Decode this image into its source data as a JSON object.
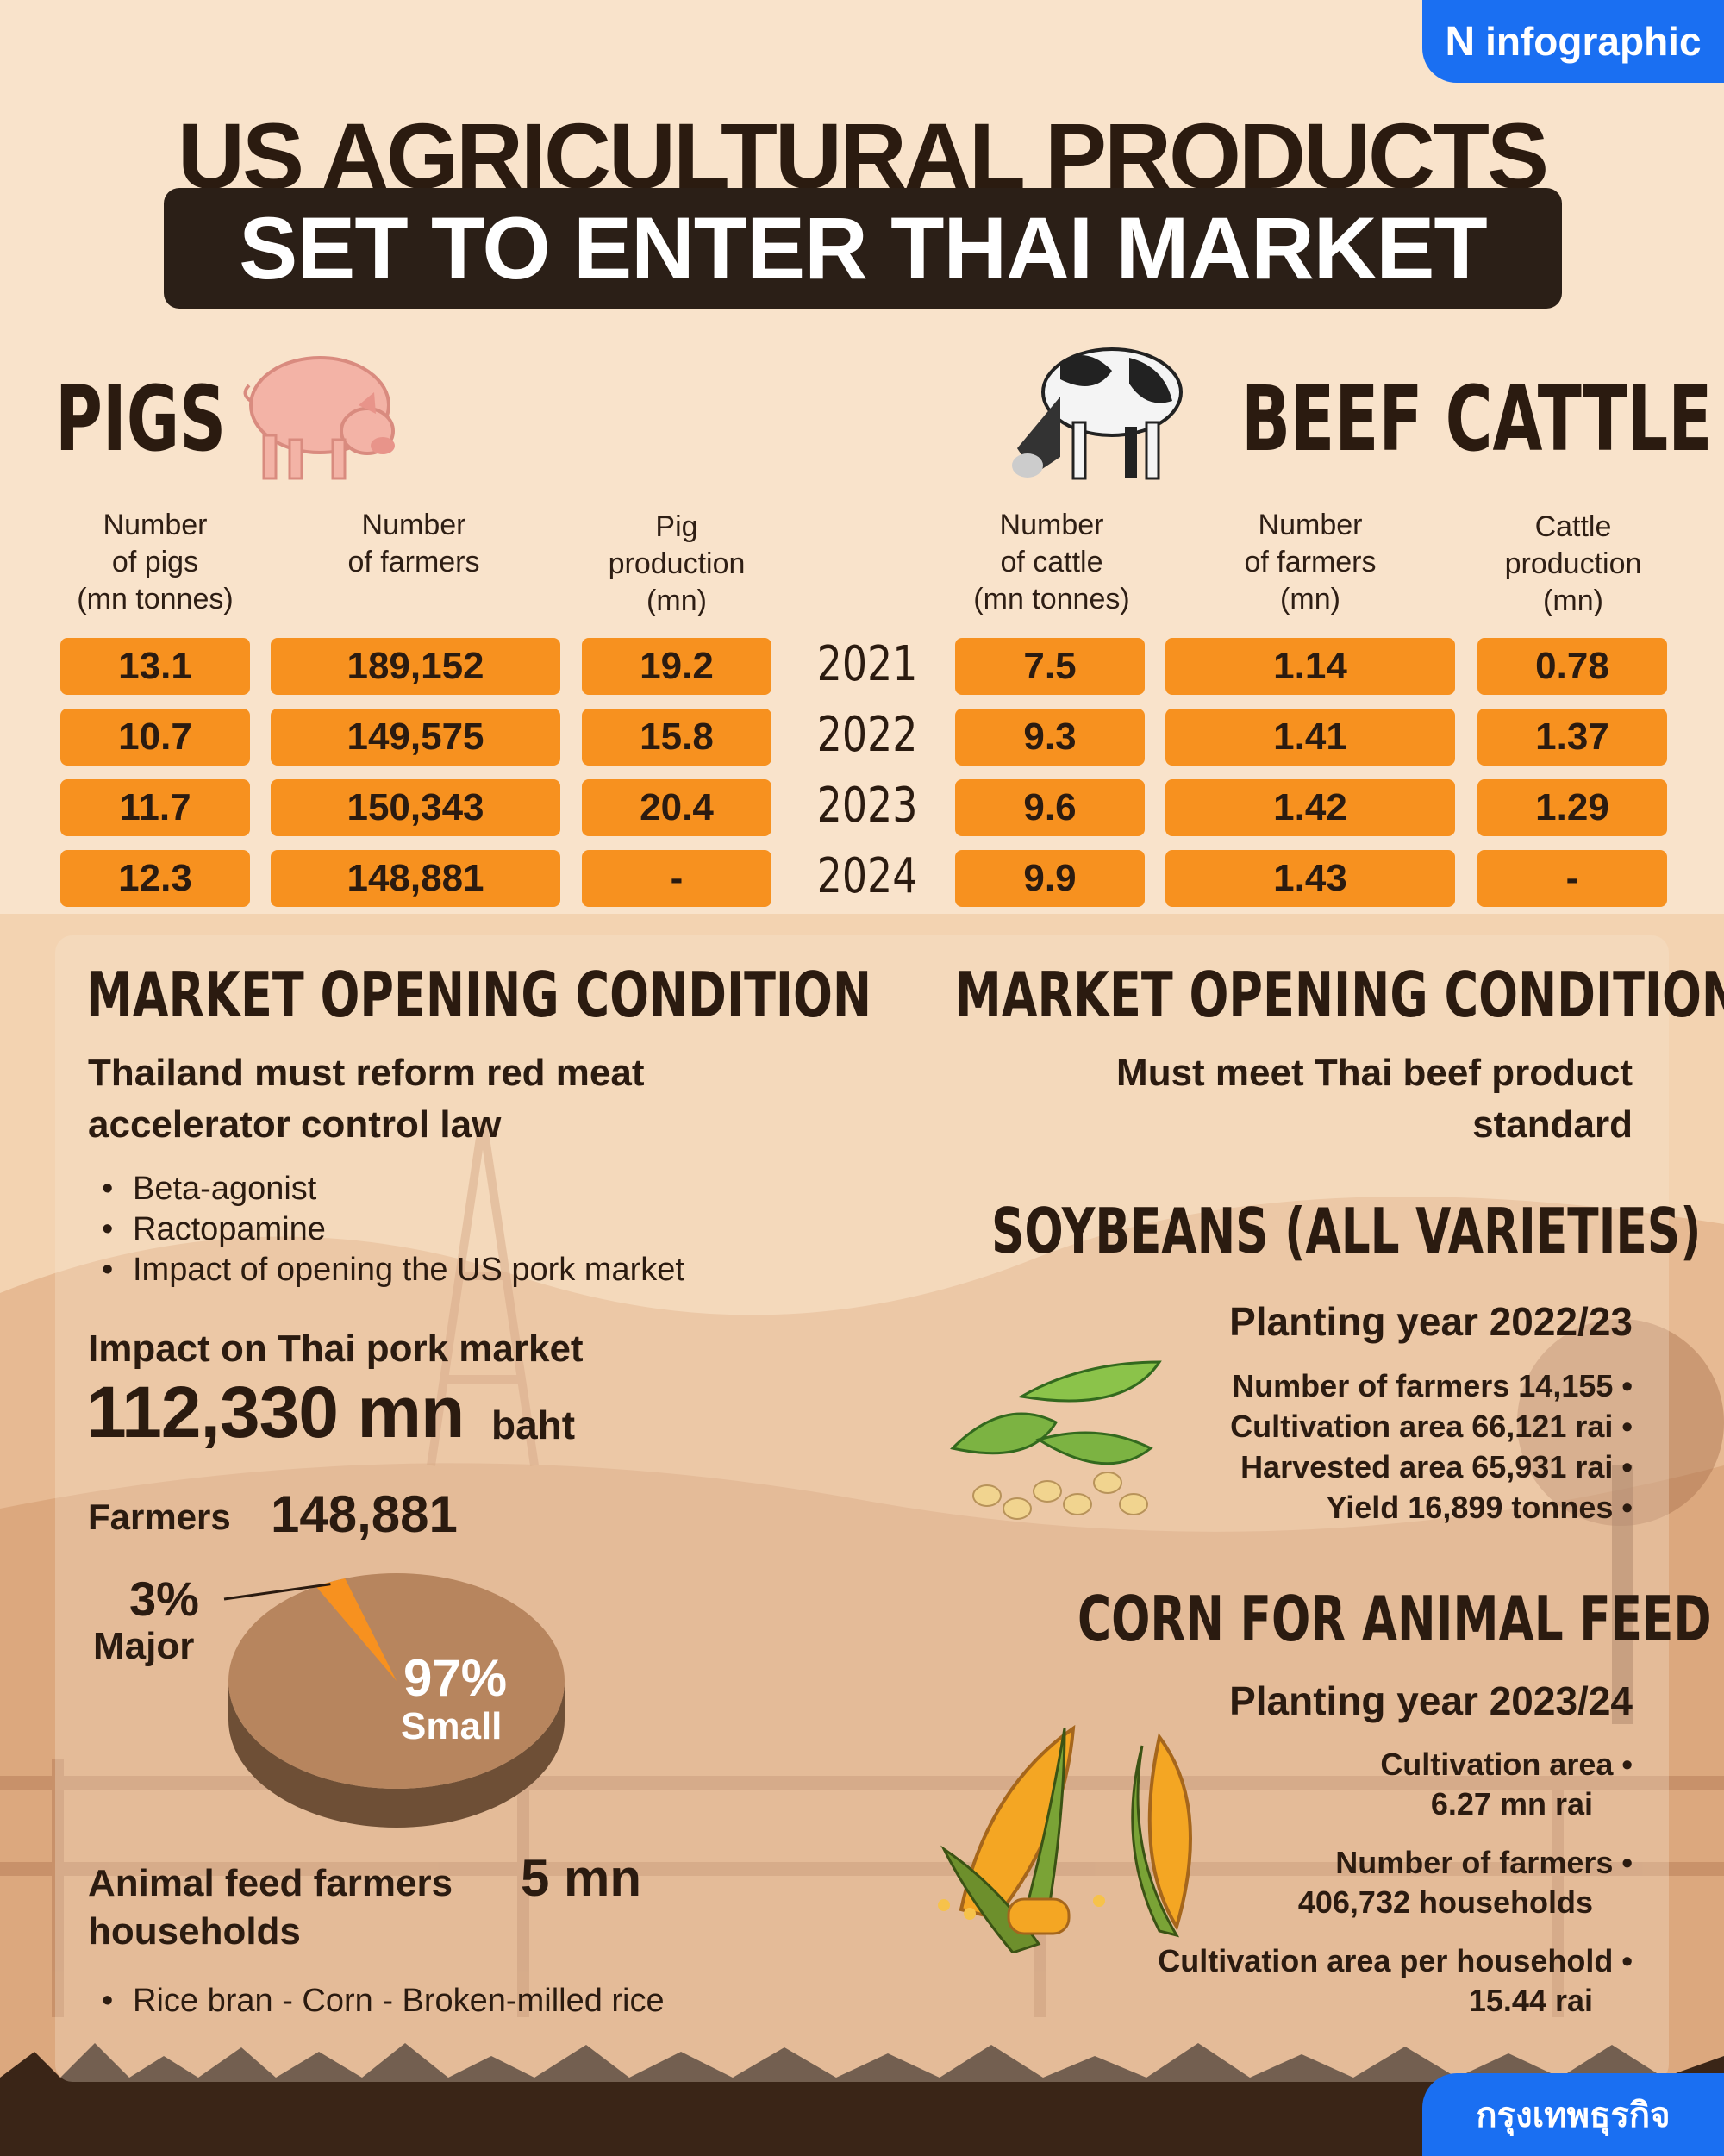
{
  "brand": {
    "name": "infographic",
    "footer_name": "กรุงเทพธุรกิจ"
  },
  "title": {
    "line1": "US AGRICULTURAL PRODUCTS",
    "line2": "SET TO ENTER THAI MARKET"
  },
  "pigs": {
    "heading": "PIGS",
    "columns": [
      "Number\nof pigs\n(mn tonnes)",
      "Number\nof farmers",
      "Pig\nproduction\n(mn)"
    ],
    "rows": [
      [
        "13.1",
        "189,152",
        "19.2"
      ],
      [
        "10.7",
        "149,575",
        "15.8"
      ],
      [
        "11.7",
        "150,343",
        "20.4"
      ],
      [
        "12.3",
        "148,881",
        "-"
      ]
    ]
  },
  "years": [
    "2021",
    "2022",
    "2023",
    "2024"
  ],
  "cattle": {
    "heading": "BEEF CATTLE",
    "columns": [
      "Number\nof cattle\n(mn tonnes)",
      "Number\nof farmers\n(mn)",
      "Cattle\nproduction\n(mn)"
    ],
    "rows": [
      [
        "7.5",
        "1.14",
        "0.78"
      ],
      [
        "9.3",
        "1.41",
        "1.37"
      ],
      [
        "9.6",
        "1.42",
        "1.29"
      ],
      [
        "9.9",
        "1.43",
        "-"
      ]
    ]
  },
  "left": {
    "condition_heading": "MARKET OPENING CONDITION",
    "condition_text_1": "Thailand must reform red meat",
    "condition_text_2": "accelerator control law",
    "bullets": [
      "Beta-agonist",
      "Ractopamine",
      "Impact of opening the US pork market"
    ],
    "impact_label": "Impact on Thai pork market",
    "impact_value": "112,330 mn",
    "impact_unit": "baht",
    "farmers_label": "Farmers",
    "farmers_value": "148,881",
    "pie": {
      "major_pct": "3%",
      "major_label": "Major",
      "small_pct": "97%",
      "small_label": "Small",
      "major_value": 3,
      "small_value": 97,
      "colors": {
        "small": "#b7855e",
        "major": "#f7911f",
        "side": "#6e4f36"
      }
    },
    "feed_label_1": "Animal feed farmers",
    "feed_value": "5 mn",
    "feed_label_2": "households",
    "feed_bullet": "Rice bran - Corn - Broken-milled rice"
  },
  "right": {
    "condition_heading": "MARKET OPENING CONDITION",
    "condition_text_1": "Must meet Thai beef product",
    "condition_text_2": "standard",
    "soy_heading": "SOYBEANS (ALL VARIETIES)",
    "soy_year": "Planting year 2022/23",
    "soy_items": [
      "Number of farmers 14,155",
      "Cultivation area 66,121 rai",
      "Harvested area 65,931 rai",
      "Yield 16,899 tonnes"
    ],
    "corn_heading": "CORN FOR ANIMAL FEED",
    "corn_year": "Planting year 2023/24",
    "corn_items": [
      [
        "Cultivation area",
        "6.27 mn rai"
      ],
      [
        "Number of farmers",
        "406,732 households"
      ],
      [
        "Cultivation area per household",
        "15.44 rai"
      ]
    ]
  },
  "colors": {
    "background": "#f9e3cb",
    "accent": "#f7911f",
    "dark": "#2b1f17",
    "brand": "#1a6ff2"
  },
  "icons": [
    "pig-illustration",
    "cow-illustration",
    "soybean-illustration",
    "corn-illustration"
  ]
}
